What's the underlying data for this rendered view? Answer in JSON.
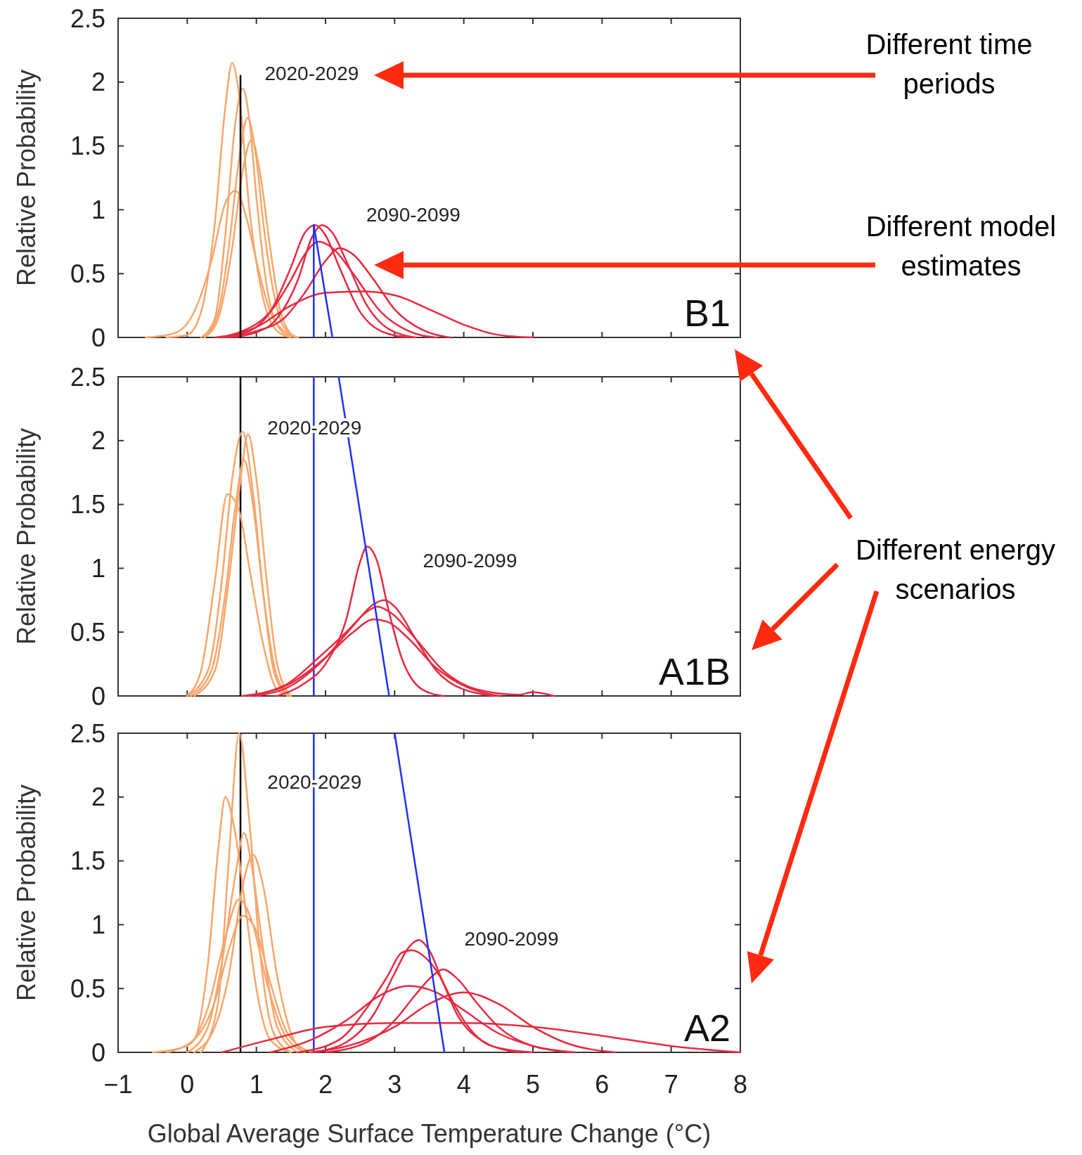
{
  "chart_data": [
    {
      "type": "line",
      "title": "B1",
      "ylabel": "Relative Probability",
      "xlim": [
        -1,
        8
      ],
      "ylim": [
        0,
        2.5
      ],
      "xticks": [
        0,
        1,
        2,
        3,
        4,
        5,
        6,
        7
      ],
      "yticks": [
        0,
        0.5,
        1,
        1.5,
        2,
        2.5
      ],
      "tick_labels": "y",
      "annotations": [
        "2020-2029",
        "2090-2099"
      ],
      "series": [
        {
          "color": "#f7a66b",
          "x": [
            -0.3,
            0,
            0.2,
            0.4,
            0.55,
            0.65,
            0.75,
            0.9,
            1.1,
            1.3,
            1.5
          ],
          "values": [
            0,
            0.02,
            0.2,
            0.9,
            1.8,
            2.15,
            1.9,
            1.0,
            0.3,
            0.05,
            0
          ]
        },
        {
          "color": "#f7a66b",
          "x": [
            0.2,
            0.4,
            0.55,
            0.7,
            0.8,
            0.9,
            1.0,
            1.15,
            1.3,
            1.5
          ],
          "values": [
            0,
            0.15,
            0.8,
            1.7,
            1.95,
            1.7,
            1.1,
            0.4,
            0.1,
            0
          ]
        },
        {
          "color": "#f7a66b",
          "x": [
            0.25,
            0.45,
            0.6,
            0.75,
            0.87,
            1.0,
            1.1,
            1.25,
            1.4,
            1.6
          ],
          "values": [
            0,
            0.2,
            0.7,
            1.4,
            1.72,
            1.4,
            0.9,
            0.35,
            0.08,
            0
          ]
        },
        {
          "color": "#f7a66b",
          "x": [
            0.25,
            0.45,
            0.65,
            0.8,
            0.93,
            1.05,
            1.2,
            1.35,
            1.55
          ],
          "values": [
            0,
            0.15,
            0.7,
            1.3,
            1.55,
            1.3,
            0.7,
            0.2,
            0
          ]
        },
        {
          "color": "#f7a66b",
          "x": [
            -0.6,
            -0.2,
            0.1,
            0.35,
            0.55,
            0.7,
            0.85,
            1.0,
            1.2,
            1.4,
            1.6
          ],
          "values": [
            0,
            0.03,
            0.2,
            0.6,
            1.05,
            1.15,
            0.95,
            0.6,
            0.2,
            0.05,
            0
          ]
        },
        {
          "color": "#e62a40",
          "x": [
            0.5,
            0.9,
            1.2,
            1.5,
            1.7,
            1.85,
            2.0,
            2.2,
            2.5,
            2.8,
            3.2
          ],
          "values": [
            0,
            0.05,
            0.2,
            0.55,
            0.82,
            0.88,
            0.8,
            0.55,
            0.2,
            0.05,
            0
          ]
        },
        {
          "color": "#e62a40",
          "x": [
            0.6,
            1.0,
            1.3,
            1.6,
            1.8,
            1.95,
            2.1,
            2.3,
            2.6,
            2.9,
            3.3
          ],
          "values": [
            0,
            0.04,
            0.15,
            0.45,
            0.78,
            0.88,
            0.82,
            0.6,
            0.25,
            0.07,
            0
          ]
        },
        {
          "color": "#e62a40",
          "x": [
            0.4,
            0.8,
            1.2,
            1.5,
            1.7,
            1.9,
            2.1,
            2.4,
            2.8,
            3.2,
            3.6
          ],
          "values": [
            0,
            0.05,
            0.2,
            0.45,
            0.65,
            0.75,
            0.7,
            0.5,
            0.2,
            0.05,
            0
          ]
        },
        {
          "color": "#e62a40",
          "x": [
            0.6,
            1.0,
            1.4,
            1.7,
            2.0,
            2.2,
            2.4,
            2.7,
            3.0,
            3.4,
            3.8
          ],
          "values": [
            0,
            0.05,
            0.15,
            0.35,
            0.6,
            0.7,
            0.65,
            0.45,
            0.22,
            0.06,
            0
          ]
        },
        {
          "color": "#e62a40",
          "x": [
            0.5,
            1.0,
            1.5,
            2.0,
            2.5,
            3.0,
            3.5,
            4.0,
            4.5,
            5.0
          ],
          "values": [
            0,
            0.08,
            0.25,
            0.35,
            0.36,
            0.33,
            0.22,
            0.1,
            0.02,
            0
          ]
        },
        {
          "color": "#000000",
          "x": [
            0.77,
            0.77
          ],
          "values": [
            2.05,
            0
          ]
        },
        {
          "color": "#1f30f5",
          "x": [
            1.83,
            1.83
          ],
          "values": [
            0.88,
            0
          ]
        },
        {
          "color": "#1f30f5",
          "x": [
            1.83,
            2.1
          ],
          "values": [
            0.88,
            0
          ]
        }
      ]
    },
    {
      "type": "line",
      "title": "A1B",
      "ylabel": "Relative Probability",
      "xlim": [
        -1,
        8
      ],
      "ylim": [
        0,
        2.5
      ],
      "xticks": [
        0,
        1,
        2,
        3,
        4,
        5,
        6,
        7
      ],
      "yticks": [
        0,
        0.5,
        1,
        1.5,
        2,
        2.5
      ],
      "tick_labels": "y",
      "annotations": [
        "2020-2029",
        "2090-2099"
      ],
      "ref_lines": [
        {
          "axis": "x",
          "value": 0.77,
          "color": "#000000"
        },
        {
          "axis": "x",
          "value": 1.83,
          "color": "#1f30f5"
        }
      ],
      "series": [
        {
          "color": "#f7a66b",
          "x": [
            0.0,
            0.3,
            0.5,
            0.65,
            0.8,
            0.95,
            1.1,
            1.25,
            1.45
          ],
          "values": [
            0,
            0.2,
            0.9,
            1.7,
            2.07,
            1.6,
            0.8,
            0.2,
            0
          ]
        },
        {
          "color": "#f7a66b",
          "x": [
            0.1,
            0.4,
            0.6,
            0.75,
            0.88,
            1.0,
            1.15,
            1.3,
            1.5
          ],
          "values": [
            0,
            0.2,
            0.9,
            1.6,
            2.05,
            1.7,
            0.9,
            0.25,
            0
          ]
        },
        {
          "color": "#f7a66b",
          "x": [
            0.05,
            0.35,
            0.55,
            0.7,
            0.82,
            0.95,
            1.1,
            1.3,
            1.5
          ],
          "values": [
            0,
            0.2,
            0.8,
            1.5,
            1.85,
            1.5,
            0.8,
            0.15,
            0
          ]
        },
        {
          "color": "#f7a66b",
          "x": [
            0.0,
            0.2,
            0.4,
            0.58,
            0.75,
            0.9,
            1.1,
            1.3,
            1.5
          ],
          "values": [
            0,
            0.2,
            0.9,
            1.58,
            1.45,
            1.0,
            0.4,
            0.05,
            0
          ]
        },
        {
          "color": "#e62a40",
          "x": [
            1.3,
            1.7,
            2.0,
            2.3,
            2.5,
            2.6,
            2.75,
            2.9,
            3.1,
            3.4,
            3.7
          ],
          "values": [
            0,
            0.1,
            0.25,
            0.6,
            1.05,
            1.17,
            1.05,
            0.7,
            0.3,
            0.05,
            0
          ]
        },
        {
          "color": "#e62a40",
          "x": [
            1.0,
            1.5,
            2.0,
            2.4,
            2.7,
            2.85,
            3.0,
            3.3,
            3.6,
            4.0,
            4.5
          ],
          "values": [
            0,
            0.08,
            0.3,
            0.55,
            0.72,
            0.75,
            0.7,
            0.45,
            0.2,
            0.05,
            0
          ]
        },
        {
          "color": "#e62a40",
          "x": [
            0.8,
            1.4,
            1.9,
            2.3,
            2.6,
            2.75,
            2.95,
            3.3,
            3.7,
            4.2,
            4.8,
            5.0,
            5.3
          ],
          "values": [
            0,
            0.08,
            0.3,
            0.5,
            0.66,
            0.7,
            0.65,
            0.45,
            0.2,
            0.05,
            0.01,
            0.03,
            0
          ]
        },
        {
          "color": "#e62a40",
          "x": [
            0.9,
            1.5,
            2.0,
            2.4,
            2.7,
            2.9,
            3.2,
            3.6,
            4.0,
            4.5
          ],
          "values": [
            0,
            0.1,
            0.3,
            0.5,
            0.6,
            0.58,
            0.45,
            0.22,
            0.08,
            0
          ]
        },
        {
          "color": "#1f30f5",
          "x": [
            2.19,
            2.92
          ],
          "values": [
            2.5,
            0
          ]
        }
      ]
    },
    {
      "type": "line",
      "title": "A2",
      "ylabel": "Relative Probability",
      "xlabel": "Global Average Surface Temperature Change (°C)",
      "xlim": [
        -1,
        8
      ],
      "ylim": [
        0,
        2.5
      ],
      "xticks": [
        {
          "value": -1,
          "label": "−1"
        },
        0,
        1,
        2,
        3,
        4,
        5,
        6,
        7,
        8
      ],
      "yticks": [
        0,
        0.5,
        1,
        1.5,
        2,
        2.5
      ],
      "annotations": [
        "2020-2029",
        "2090-2099"
      ],
      "ref_lines": [
        {
          "axis": "x",
          "value": 0.77,
          "color": "#000000"
        },
        {
          "axis": "x",
          "value": 1.83,
          "color": "#1f30f5"
        }
      ],
      "series": [
        {
          "color": "#f7a66b",
          "x": [
            0.2,
            0.45,
            0.6,
            0.75,
            0.9,
            1.05,
            1.25,
            1.5
          ],
          "values": [
            0,
            0.4,
            1.5,
            2.5,
            1.8,
            0.8,
            0.15,
            0
          ]
        },
        {
          "color": "#f7a66b",
          "x": [
            -0.3,
            0.1,
            0.3,
            0.45,
            0.55,
            0.7,
            0.85,
            1.0,
            1.2,
            1.5
          ],
          "values": [
            0,
            0.1,
            0.7,
            1.6,
            2.0,
            1.7,
            1.1,
            0.5,
            0.1,
            0
          ]
        },
        {
          "color": "#f7a66b",
          "x": [
            0.0,
            0.3,
            0.5,
            0.7,
            0.82,
            0.95,
            1.1,
            1.3,
            1.6
          ],
          "values": [
            0,
            0.2,
            0.7,
            1.4,
            1.72,
            1.4,
            0.8,
            0.2,
            0
          ]
        },
        {
          "color": "#f7a66b",
          "x": [
            0.1,
            0.4,
            0.6,
            0.8,
            0.95,
            1.1,
            1.3,
            1.5,
            1.7
          ],
          "values": [
            0,
            0.2,
            0.6,
            1.3,
            1.55,
            1.3,
            0.6,
            0.15,
            0
          ]
        },
        {
          "color": "#f7a66b",
          "x": [
            -0.5,
            0,
            0.3,
            0.55,
            0.75,
            0.95,
            1.15,
            1.4,
            1.7
          ],
          "values": [
            0,
            0.05,
            0.35,
            0.9,
            1.2,
            1.0,
            0.55,
            0.15,
            0
          ]
        },
        {
          "color": "#f7a66b",
          "x": [
            -0.3,
            0.1,
            0.4,
            0.6,
            0.8,
            1.0,
            1.2,
            1.45,
            1.8
          ],
          "values": [
            0,
            0.1,
            0.4,
            0.8,
            1.07,
            0.95,
            0.55,
            0.15,
            0
          ]
        },
        {
          "color": "#e62a40",
          "x": [
            1.8,
            2.3,
            2.7,
            3.0,
            3.2,
            3.35,
            3.5,
            3.7,
            4.0,
            4.4,
            5.0
          ],
          "values": [
            0,
            0.08,
            0.3,
            0.62,
            0.82,
            0.88,
            0.8,
            0.55,
            0.25,
            0.05,
            0
          ]
        },
        {
          "color": "#e62a40",
          "x": [
            1.6,
            2.2,
            2.6,
            2.9,
            3.1,
            3.25,
            3.45,
            3.65,
            3.9,
            4.3,
            4.8
          ],
          "values": [
            0,
            0.1,
            0.35,
            0.6,
            0.78,
            0.8,
            0.74,
            0.6,
            0.3,
            0.08,
            0
          ]
        },
        {
          "color": "#e62a40",
          "x": [
            2.0,
            2.6,
            3.0,
            3.3,
            3.55,
            3.7,
            3.9,
            4.2,
            4.5,
            5.0,
            5.6
          ],
          "values": [
            0,
            0.08,
            0.25,
            0.45,
            0.6,
            0.65,
            0.58,
            0.38,
            0.2,
            0.05,
            0
          ]
        },
        {
          "color": "#e62a40",
          "x": [
            1.2,
            1.8,
            2.3,
            2.8,
            3.2,
            3.6,
            4.0,
            4.5,
            5.0,
            5.6
          ],
          "values": [
            0,
            0.1,
            0.25,
            0.45,
            0.52,
            0.47,
            0.33,
            0.15,
            0.05,
            0
          ]
        },
        {
          "color": "#e62a40",
          "x": [
            1.8,
            2.5,
            3.0,
            3.5,
            4.0,
            4.5,
            5.0,
            5.5,
            6.2
          ],
          "values": [
            0,
            0.08,
            0.2,
            0.38,
            0.47,
            0.38,
            0.2,
            0.07,
            0
          ]
        },
        {
          "color": "#e62a40",
          "x": [
            0.5,
            1.2,
            2.0,
            3.0,
            3.5,
            4.0,
            5.0,
            6.0,
            7.0,
            8.0
          ],
          "values": [
            0,
            0.1,
            0.2,
            0.23,
            0.23,
            0.23,
            0.2,
            0.13,
            0.05,
            0
          ]
        },
        {
          "color": "#1f30f5",
          "x": [
            3.0,
            3.72
          ],
          "values": [
            2.5,
            0
          ]
        }
      ]
    },
    {
      "type": "other",
      "annotations": [
        "Different time periods",
        "Different model estimates",
        "Different energy scenarios"
      ]
    }
  ]
}
